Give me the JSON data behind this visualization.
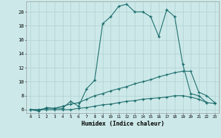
{
  "xlabel": "Humidex (Indice chaleur)",
  "background_color": "#cce8e8",
  "grid_color": "#b0d0d0",
  "line_color": "#1a6b6b",
  "xlim": [
    -0.5,
    23.5
  ],
  "ylim": [
    5.5,
    21.5
  ],
  "x_ticks": [
    0,
    1,
    2,
    3,
    4,
    5,
    6,
    7,
    8,
    9,
    10,
    11,
    12,
    13,
    14,
    15,
    16,
    17,
    18,
    19,
    20,
    21,
    22,
    23
  ],
  "y_ticks": [
    6,
    8,
    10,
    12,
    14,
    16,
    18,
    20
  ],
  "line1_x": [
    0,
    1,
    2,
    3,
    4,
    5,
    6,
    7,
    8,
    9,
    10,
    11,
    12,
    13,
    14,
    15,
    16,
    17,
    18,
    19,
    20,
    21,
    22
  ],
  "line1_y": [
    6.0,
    5.8,
    6.3,
    6.2,
    6.2,
    7.2,
    6.5,
    9.0,
    10.2,
    18.3,
    19.3,
    20.8,
    21.1,
    20.0,
    20.0,
    19.3,
    16.5,
    20.3,
    19.3,
    12.5,
    8.3,
    8.0,
    7.0
  ],
  "line2_x": [
    0,
    1,
    2,
    3,
    4,
    5,
    6,
    7,
    8,
    9,
    10,
    11,
    12,
    13,
    14,
    15,
    16,
    17,
    18,
    19,
    20,
    21,
    22,
    23
  ],
  "line2_y": [
    6.0,
    6.0,
    6.2,
    6.2,
    6.5,
    6.8,
    7.0,
    7.5,
    8.0,
    8.3,
    8.7,
    9.0,
    9.3,
    9.7,
    10.0,
    10.3,
    10.7,
    11.0,
    11.3,
    11.5,
    11.5,
    8.5,
    8.0,
    7.0
  ],
  "line3_x": [
    0,
    1,
    2,
    3,
    4,
    5,
    6,
    7,
    8,
    9,
    10,
    11,
    12,
    13,
    14,
    15,
    16,
    17,
    18,
    19,
    20,
    21,
    22,
    23
  ],
  "line3_y": [
    6.0,
    6.0,
    6.0,
    6.0,
    6.0,
    6.0,
    6.2,
    6.3,
    6.5,
    6.7,
    6.8,
    7.0,
    7.2,
    7.3,
    7.5,
    7.6,
    7.7,
    7.8,
    8.0,
    8.0,
    7.8,
    7.5,
    7.0,
    6.9
  ]
}
